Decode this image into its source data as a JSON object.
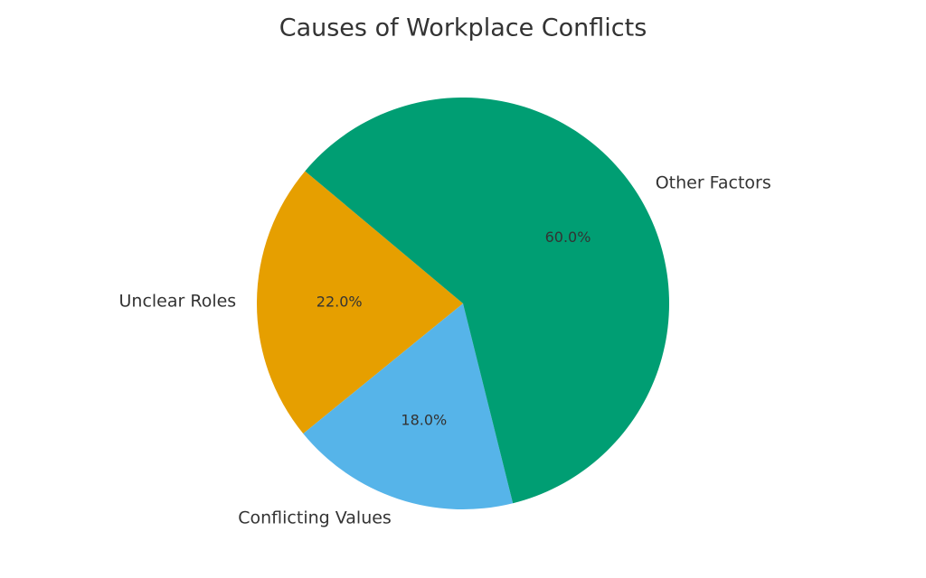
{
  "chart_data": {
    "type": "pie",
    "title": "Causes of Workplace Conflicts",
    "categories": [
      "Unclear Roles",
      "Conflicting Values",
      "Other Factors"
    ],
    "values": [
      22,
      18,
      60
    ],
    "value_labels": [
      "22.0%",
      "18.0%",
      "60.0%"
    ],
    "colors": [
      "#e69f00",
      "#56b4e9",
      "#009e73"
    ],
    "start_angle": 140
  }
}
